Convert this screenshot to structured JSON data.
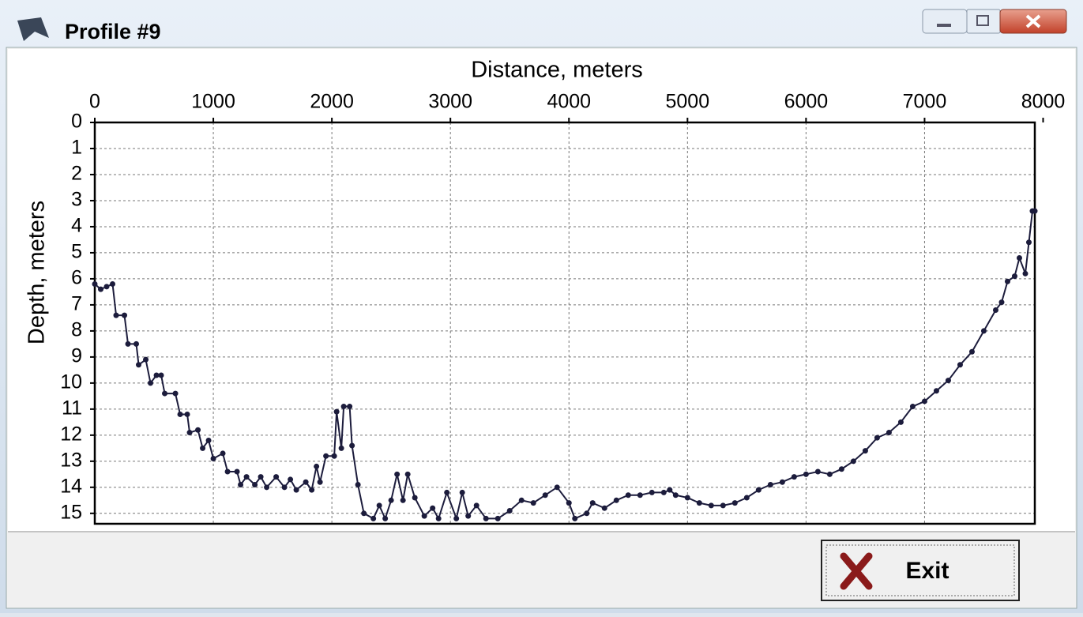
{
  "window": {
    "title": "Profile #9",
    "button": "Exit"
  },
  "chart_data": {
    "type": "line",
    "x_label": "Distance, meters",
    "y_label": "Depth, meters",
    "x": [
      0,
      50,
      100,
      150,
      180,
      250,
      280,
      350,
      370,
      430,
      470,
      520,
      560,
      590,
      680,
      720,
      780,
      800,
      870,
      910,
      960,
      1000,
      1080,
      1120,
      1200,
      1230,
      1280,
      1350,
      1400,
      1450,
      1530,
      1600,
      1650,
      1700,
      1780,
      1830,
      1870,
      1900,
      1950,
      2020,
      2040,
      2080,
      2100,
      2150,
      2170,
      2220,
      2270,
      2350,
      2400,
      2450,
      2500,
      2550,
      2600,
      2640,
      2700,
      2780,
      2850,
      2900,
      2970,
      3050,
      3100,
      3150,
      3220,
      3300,
      3400,
      3500,
      3600,
      3700,
      3800,
      3900,
      4000,
      4050,
      4150,
      4200,
      4300,
      4400,
      4500,
      4600,
      4700,
      4800,
      4850,
      4900,
      5000,
      5100,
      5200,
      5300,
      5400,
      5500,
      5600,
      5700,
      5800,
      5900,
      6000,
      6100,
      6200,
      6300,
      6400,
      6500,
      6600,
      6700,
      6800,
      6900,
      7000,
      7100,
      7200,
      7300,
      7400,
      7500,
      7600,
      7650,
      7700,
      7760,
      7800,
      7850,
      7880,
      7910,
      7930
    ],
    "series": [
      {
        "name": "Depth",
        "color": "#1c1c3c",
        "values": [
          6.2,
          6.4,
          6.3,
          6.2,
          7.4,
          7.4,
          8.5,
          8.5,
          9.3,
          9.1,
          10.0,
          9.7,
          9.7,
          10.4,
          10.4,
          11.2,
          11.2,
          11.9,
          11.8,
          12.5,
          12.2,
          12.9,
          12.7,
          13.4,
          13.4,
          13.9,
          13.6,
          13.9,
          13.6,
          14.0,
          13.6,
          14.0,
          13.7,
          14.1,
          13.8,
          14.1,
          13.2,
          13.8,
          12.8,
          12.8,
          11.1,
          12.5,
          10.9,
          10.9,
          12.4,
          13.9,
          15.0,
          15.2,
          14.7,
          15.2,
          14.5,
          13.5,
          14.5,
          13.5,
          14.4,
          15.1,
          14.8,
          15.2,
          14.2,
          15.2,
          14.2,
          15.1,
          14.7,
          15.2,
          15.2,
          14.9,
          14.5,
          14.6,
          14.3,
          14.0,
          14.6,
          15.2,
          15.0,
          14.6,
          14.8,
          14.5,
          14.3,
          14.3,
          14.2,
          14.2,
          14.1,
          14.3,
          14.4,
          14.6,
          14.7,
          14.7,
          14.6,
          14.4,
          14.1,
          13.9,
          13.8,
          13.6,
          13.5,
          13.4,
          13.5,
          13.3,
          13.0,
          12.6,
          12.1,
          11.9,
          11.5,
          10.9,
          10.7,
          10.3,
          9.9,
          9.3,
          8.8,
          8.0,
          7.2,
          6.9,
          6.1,
          5.9,
          5.2,
          5.8,
          4.6,
          3.4,
          3.4
        ]
      }
    ],
    "xlim": [
      0,
      7930
    ],
    "xticks": [
      0,
      1000,
      2000,
      3000,
      4000,
      5000,
      6000,
      7000,
      8000
    ],
    "ylim": [
      0,
      15.4
    ],
    "yticks": [
      0,
      1,
      2,
      3,
      4,
      5,
      6,
      7,
      8,
      9,
      10,
      11,
      12,
      13,
      14,
      15
    ],
    "y_inverted": true,
    "grid": true
  }
}
